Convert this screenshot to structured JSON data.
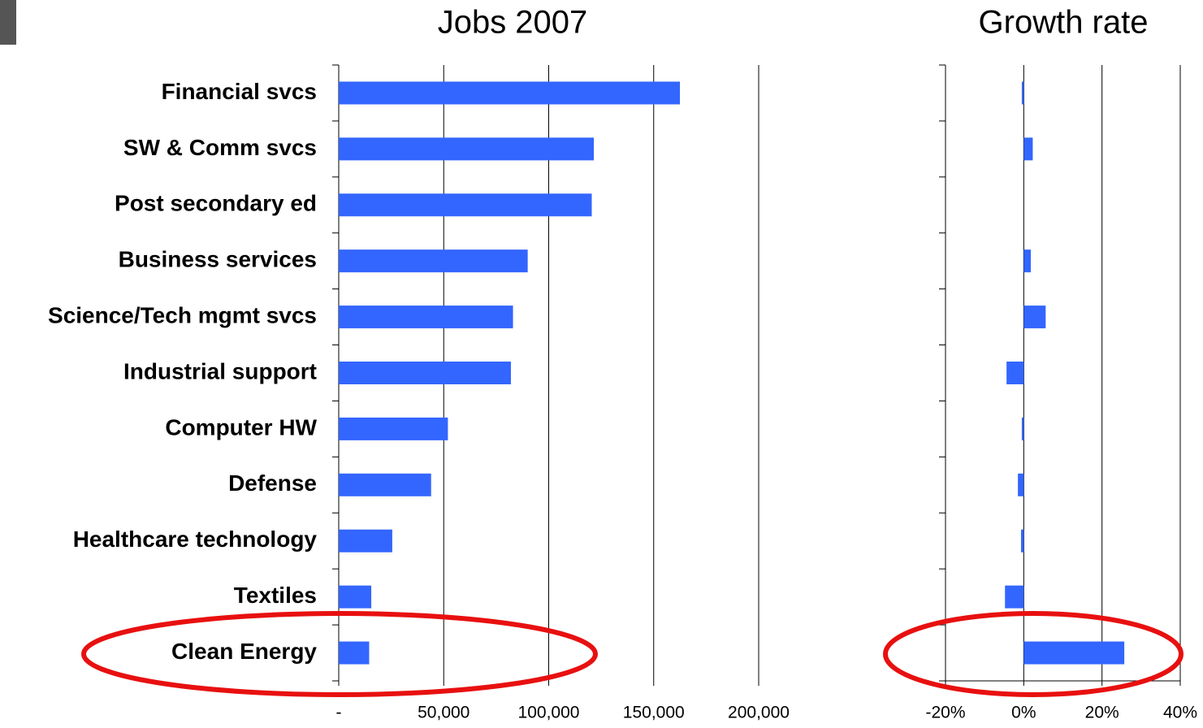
{
  "chart_data": [
    {
      "type": "hbar",
      "title": "Jobs 2007",
      "categories": [
        "Financial svcs",
        "SW & Comm svcs",
        "Post secondary ed",
        "Business services",
        "Science/Tech mgmt svcs",
        "Industrial support",
        "Computer HW",
        "Defense",
        "Healthcare technology",
        "Textiles",
        "Clean Energy"
      ],
      "values": [
        162500,
        121500,
        120500,
        90000,
        83000,
        82000,
        52000,
        44000,
        25500,
        15500,
        14500
      ],
      "color": "#3366ff",
      "grid": true,
      "xlim": [
        0,
        200000
      ],
      "xticks": [
        {
          "value": 0,
          "label": "-"
        },
        {
          "value": 50000,
          "label": "50,000"
        },
        {
          "value": 100000,
          "label": "100,000"
        },
        {
          "value": 150000,
          "label": "150,000"
        },
        {
          "value": 200000,
          "label": "200,000"
        }
      ]
    },
    {
      "type": "hbar",
      "title": "Growth rate",
      "values": [
        -0.5,
        2.3,
        0,
        1.8,
        5.6,
        -4.4,
        -0.5,
        -1.5,
        -0.7,
        -4.8,
        25.7
      ],
      "color": "#3366ff",
      "grid": true,
      "xlim": [
        -20,
        40
      ],
      "xticks": [
        {
          "value": -20,
          "label": "-20%"
        },
        {
          "value": 0,
          "label": "0%"
        },
        {
          "value": 20,
          "label": "20%"
        },
        {
          "value": 40,
          "label": "40%"
        }
      ]
    }
  ]
}
